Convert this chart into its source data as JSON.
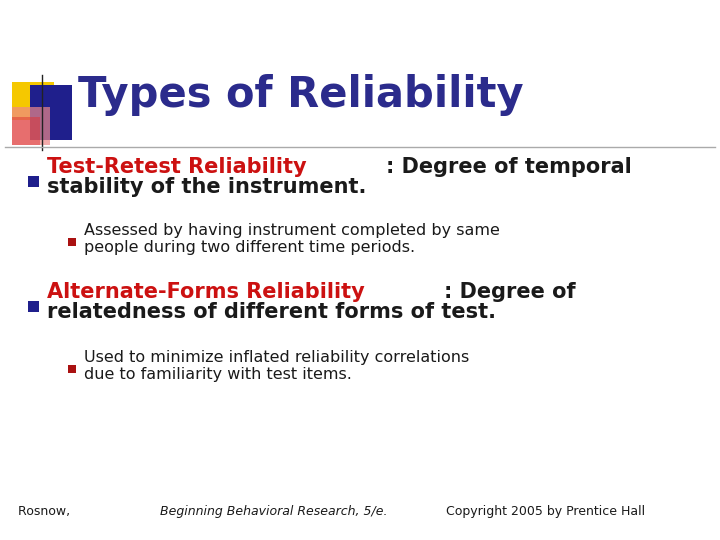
{
  "title": "Types of Reliability",
  "title_color": "#2B2B8C",
  "background_color": "#FFFFFF",
  "bullet1_red": "Test-Retest Reliability",
  "bullet1_black": ": Degree of temporal",
  "bullet1_line2": "stability of the instrument.",
  "sub1_line1": "Assessed by having instrument completed by same",
  "sub1_line2": "people during two different time periods.",
  "bullet2_red": "Alternate-Forms Reliability",
  "bullet2_black": ": Degree of",
  "bullet2_line2": "relatedness of different forms of test.",
  "sub2_line1": "Used to minimize inflated reliability correlations",
  "sub2_line2": "due to familiarity with test items.",
  "footer_normal1": "Rosnow, ",
  "footer_italic": "Beginning Behavioral Research, 5/e.",
  "footer_normal2": " Copyright 2005 by Prentice Hall",
  "red_color": "#CC1111",
  "dark_color": "#1A1A1A",
  "title_color_val": "#2B2B8C",
  "bullet_navy": "#1F1F8C",
  "sub_bullet_red": "#AA1111",
  "line_color": "#999999",
  "logo_yellow": "#F5C800",
  "logo_blue": "#1F1F8C",
  "logo_red": "#DD3333",
  "logo_pink": "#EE8888"
}
